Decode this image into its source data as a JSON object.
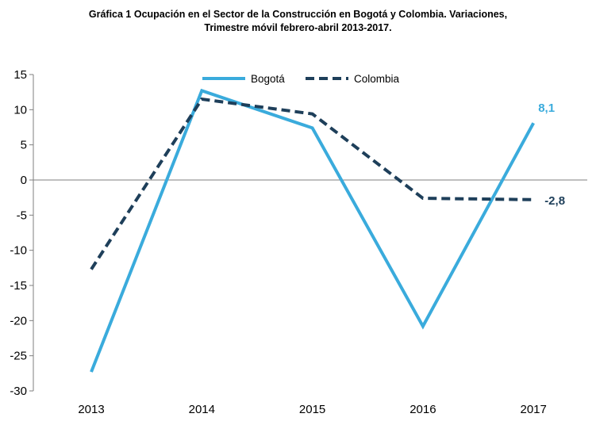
{
  "title": {
    "line1": "Gráfica 1  Ocupación en el Sector de la Construcción en Bogotá y Colombia. Variaciones,",
    "line2": "Trimestre móvil febrero-abril 2013-2017."
  },
  "chart_data": {
    "type": "line",
    "categories": [
      "2013",
      "2014",
      "2015",
      "2016",
      "2017"
    ],
    "series": [
      {
        "name": "Bogotá",
        "values": [
          -27.3,
          12.7,
          7.4,
          -20.8,
          8.1
        ],
        "color": "#3aabdc",
        "dash": "solid"
      },
      {
        "name": "Colombia",
        "values": [
          -12.7,
          11.5,
          9.4,
          -2.6,
          -2.8
        ],
        "color": "#1e3f5a",
        "dash": "dashed"
      }
    ],
    "ylim": [
      -30,
      15
    ],
    "yticks": [
      "15",
      "10",
      "5",
      "0",
      "-5",
      "-10",
      "-15",
      "-20",
      "-25",
      "-30"
    ],
    "data_labels": [
      {
        "series": "Bogotá",
        "category": "2017",
        "text": "8,1",
        "color": "#3aabdc"
      },
      {
        "series": "Colombia",
        "category": "2017",
        "text": "-2,8",
        "color": "#1e3f5a"
      }
    ],
    "legend_position": "top-center",
    "grid": false,
    "xlabel": "",
    "ylabel": ""
  }
}
